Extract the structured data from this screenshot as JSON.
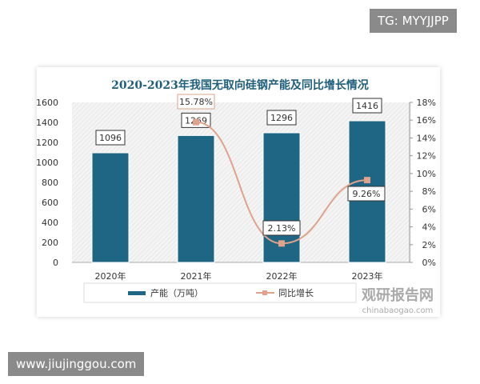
{
  "watermarks": {
    "top_right": "TG: MYYJJPP",
    "bottom_left": "www.jiujinggou.com",
    "source_logo": "观研报告网",
    "source_url": "chinabaogao.com"
  },
  "chart_data": {
    "type": "bar+line",
    "title": "2020-2023年我国无取向硅钢产能及同比增长情况",
    "categories": [
      "2020年",
      "2021年",
      "2022年",
      "2023年"
    ],
    "series": [
      {
        "name": "产能（万吨）",
        "type": "bar",
        "axis": "left",
        "values": [
          1096,
          1269,
          1296,
          1416
        ],
        "labels": [
          "1096",
          "1269",
          "1296",
          "1416"
        ],
        "color": "#1f6584"
      },
      {
        "name": "同比增长",
        "type": "line",
        "axis": "right",
        "values": [
          null,
          15.78,
          2.13,
          9.26
        ],
        "labels": [
          "",
          "15.78%",
          "2.13%",
          "9.26%"
        ],
        "color": "#e0a28a"
      }
    ],
    "left_axis": {
      "ylim": [
        0,
        1600
      ],
      "ticks": [
        "0",
        "200",
        "400",
        "600",
        "800",
        "1000",
        "1200",
        "1400",
        "1600"
      ]
    },
    "right_axis": {
      "ylim": [
        0,
        18
      ],
      "ticks": [
        "0%",
        "2%",
        "4%",
        "6%",
        "8%",
        "10%",
        "12%",
        "14%",
        "16%",
        "18%"
      ]
    },
    "legend": "bottom"
  }
}
